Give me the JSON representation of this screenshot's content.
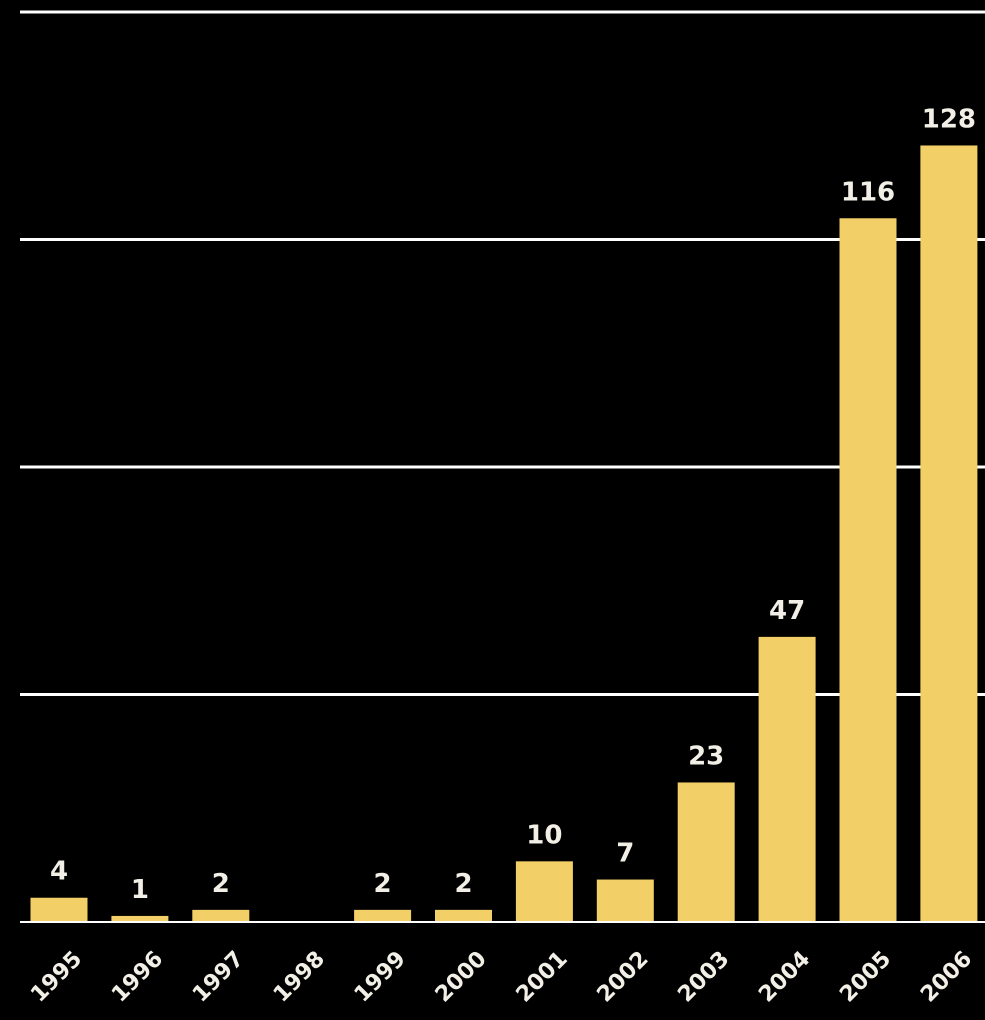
{
  "chart_data": {
    "type": "bar",
    "categories": [
      "1995",
      "1996",
      "1997",
      "1998",
      "1999",
      "2000",
      "2001",
      "2002",
      "2003",
      "2004",
      "2005",
      "2006"
    ],
    "values": [
      4,
      1,
      2,
      0,
      2,
      2,
      10,
      7,
      23,
      47,
      116,
      128
    ],
    "data_labels": [
      "4",
      "1",
      "2",
      "",
      "2",
      "2",
      "10",
      "7",
      "23",
      "47",
      "116",
      "128"
    ],
    "title": "",
    "xlabel": "",
    "ylabel": "",
    "ylim": [
      0,
      150
    ],
    "grid": true,
    "gridlines_at": [
      37.5,
      75,
      112.5,
      150
    ],
    "colors": {
      "bar": "#f2cf67",
      "grid": "#ffffff",
      "background": "#000000",
      "text": "#f2f0e6"
    }
  }
}
